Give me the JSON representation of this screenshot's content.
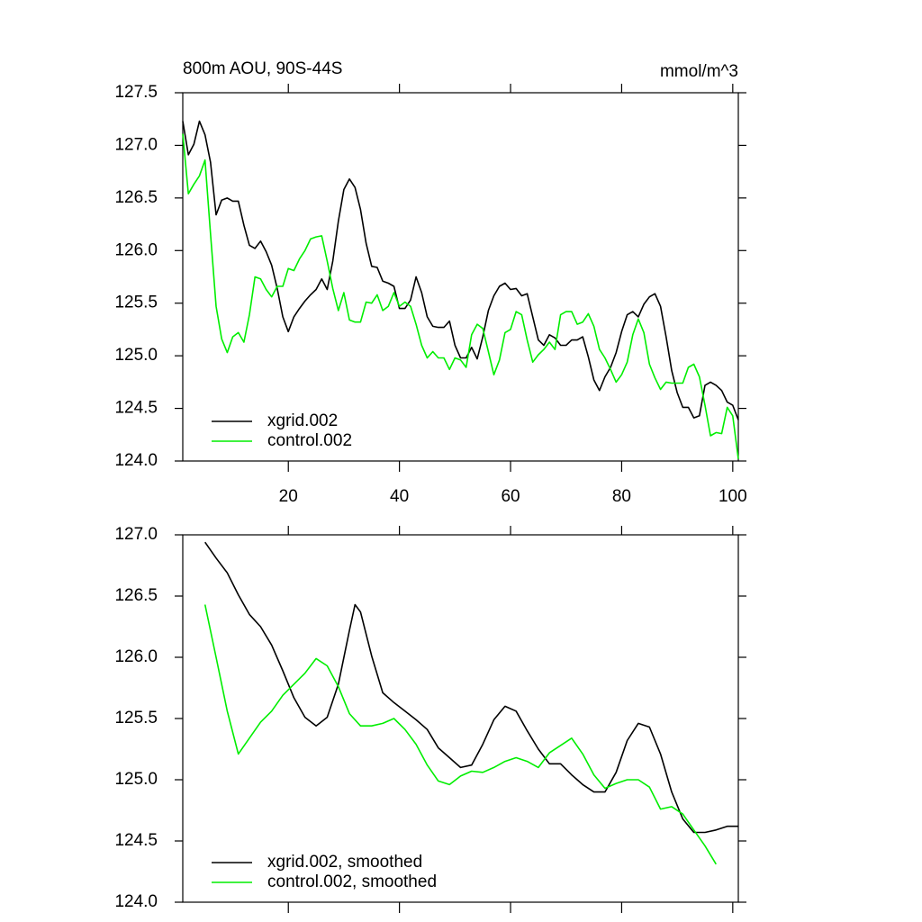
{
  "chart_data": [
    {
      "type": "line",
      "title": "800m AOU, 90S-44S",
      "units": "mmol/m^3",
      "x": [
        1,
        2,
        3,
        4,
        5,
        6,
        7,
        8,
        9,
        10,
        11,
        12,
        13,
        14,
        15,
        16,
        17,
        18,
        19,
        20,
        21,
        22,
        23,
        24,
        25,
        26,
        27,
        28,
        29,
        30,
        31,
        32,
        33,
        34,
        35,
        36,
        37,
        38,
        39,
        40,
        41,
        42,
        43,
        44,
        45,
        46,
        47,
        48,
        49,
        50,
        51,
        52,
        53,
        54,
        55,
        56,
        57,
        58,
        59,
        60,
        61,
        62,
        63,
        64,
        65,
        66,
        67,
        68,
        69,
        70,
        71,
        72,
        73,
        74,
        75,
        76,
        77,
        78,
        79,
        80,
        81,
        82,
        83,
        84,
        85,
        86,
        87,
        88,
        89,
        90,
        91,
        92,
        93,
        94,
        95,
        96,
        97,
        98,
        99,
        100,
        101
      ],
      "series": [
        {
          "name": "xgrid.002",
          "color": "#000000",
          "values": [
            127.23,
            126.91,
            127.01,
            127.23,
            127.1,
            126.84,
            126.34,
            126.48,
            126.5,
            126.47,
            126.47,
            126.24,
            126.05,
            126.02,
            126.09,
            125.99,
            125.86,
            125.64,
            125.37,
            125.23,
            125.37,
            125.45,
            125.52,
            125.58,
            125.63,
            125.73,
            125.63,
            125.9,
            126.28,
            126.58,
            126.68,
            126.6,
            126.39,
            126.07,
            125.85,
            125.84,
            125.71,
            125.69,
            125.66,
            125.45,
            125.45,
            125.53,
            125.75,
            125.6,
            125.37,
            125.28,
            125.27,
            125.27,
            125.33,
            125.1,
            124.98,
            124.98,
            125.08,
            124.97,
            125.18,
            125.43,
            125.57,
            125.66,
            125.69,
            125.63,
            125.64,
            125.57,
            125.59,
            125.37,
            125.15,
            125.1,
            125.2,
            125.17,
            125.1,
            125.1,
            125.15,
            125.15,
            125.18,
            124.99,
            124.77,
            124.67,
            124.8,
            124.89,
            125.03,
            125.23,
            125.39,
            125.42,
            125.37,
            125.49,
            125.56,
            125.59,
            125.47,
            125.18,
            124.86,
            124.65,
            124.51,
            124.51,
            124.41,
            124.43,
            124.72,
            124.75,
            124.72,
            124.67,
            124.56,
            124.53,
            124.39
          ]
        },
        {
          "name": "control.002",
          "color": "#00ee00",
          "values": [
            127.11,
            126.54,
            126.63,
            126.71,
            126.86,
            126.16,
            125.47,
            125.16,
            125.03,
            125.18,
            125.22,
            125.13,
            125.39,
            125.75,
            125.73,
            125.63,
            125.56,
            125.66,
            125.66,
            125.83,
            125.81,
            125.92,
            126.0,
            126.11,
            126.13,
            126.14,
            125.9,
            125.64,
            125.43,
            125.6,
            125.34,
            125.32,
            125.32,
            125.51,
            125.5,
            125.58,
            125.43,
            125.47,
            125.6,
            125.47,
            125.51,
            125.47,
            125.3,
            125.1,
            124.98,
            125.04,
            124.98,
            124.98,
            124.87,
            124.98,
            124.96,
            124.89,
            125.2,
            125.3,
            125.26,
            125.04,
            124.82,
            124.96,
            125.22,
            125.25,
            125.42,
            125.39,
            125.15,
            124.94,
            125.01,
            125.06,
            125.13,
            125.06,
            125.39,
            125.42,
            125.42,
            125.3,
            125.32,
            125.4,
            125.28,
            125.06,
            124.98,
            124.87,
            124.75,
            124.82,
            124.94,
            125.2,
            125.35,
            125.22,
            124.92,
            124.79,
            124.68,
            124.75,
            124.74,
            124.74,
            124.74,
            124.89,
            124.92,
            124.8,
            124.53,
            124.24,
            124.27,
            124.26,
            124.51,
            124.43,
            124.02
          ]
        }
      ],
      "xlim": [
        1,
        101
      ],
      "xticks": [
        20,
        40,
        60,
        80,
        100
      ],
      "xticklabels": true,
      "ylim": [
        124.0,
        127.5
      ],
      "yticks": [
        {
          "value": 124.0,
          "label": "124.0"
        },
        {
          "value": 124.5,
          "label": "124.5"
        },
        {
          "value": 125.0,
          "label": "125.0"
        },
        {
          "value": 125.5,
          "label": "125.5"
        },
        {
          "value": 126.0,
          "label": "126.0"
        },
        {
          "value": 126.5,
          "label": "126.5"
        },
        {
          "value": 127.0,
          "label": "127.0"
        },
        {
          "value": 127.5,
          "label": "127.5"
        }
      ],
      "legend": "lower left"
    },
    {
      "type": "line",
      "series": [
        {
          "name": "xgrid.002, smoothed",
          "color": "#000000",
          "x": [
            5,
            7,
            9,
            11,
            13,
            15,
            17,
            19,
            21,
            23,
            25,
            27,
            29,
            31,
            32,
            33,
            35,
            37,
            39,
            41,
            43,
            45,
            47,
            49,
            51,
            53,
            55,
            57,
            59,
            61,
            63,
            65,
            67,
            69,
            71,
            73,
            75,
            77,
            79,
            81,
            83,
            85,
            87,
            89,
            91,
            93,
            95,
            97,
            99,
            101
          ],
          "values": [
            126.94,
            126.81,
            126.69,
            126.51,
            126.35,
            126.25,
            126.1,
            125.89,
            125.67,
            125.51,
            125.44,
            125.51,
            125.78,
            126.22,
            126.43,
            126.37,
            126.01,
            125.71,
            125.63,
            125.56,
            125.49,
            125.41,
            125.26,
            125.18,
            125.1,
            125.12,
            125.29,
            125.49,
            125.6,
            125.56,
            125.4,
            125.25,
            125.13,
            125.13,
            125.04,
            124.96,
            124.9,
            124.9,
            125.06,
            125.32,
            125.46,
            125.43,
            125.21,
            124.9,
            124.68,
            124.57,
            124.57,
            124.59,
            124.62,
            124.62
          ]
        },
        {
          "name": "control.002, smoothed",
          "color": "#00ee00",
          "x": [
            5,
            7,
            9,
            11,
            13,
            15,
            17,
            19,
            21,
            23,
            25,
            27,
            29,
            31,
            33,
            35,
            37,
            39,
            41,
            43,
            45,
            47,
            49,
            51,
            53,
            55,
            57,
            59,
            61,
            63,
            65,
            67,
            69,
            71,
            73,
            75,
            77,
            79,
            81,
            83,
            85,
            87,
            89,
            91,
            93,
            95,
            97
          ],
          "values": [
            126.43,
            126.0,
            125.56,
            125.21,
            125.34,
            125.47,
            125.56,
            125.69,
            125.78,
            125.87,
            125.99,
            125.93,
            125.76,
            125.54,
            125.44,
            125.44,
            125.46,
            125.5,
            125.41,
            125.29,
            125.12,
            124.99,
            124.96,
            125.03,
            125.07,
            125.06,
            125.1,
            125.15,
            125.18,
            125.15,
            125.1,
            125.22,
            125.28,
            125.34,
            125.21,
            125.04,
            124.93,
            124.97,
            125.0,
            125.0,
            124.94,
            124.76,
            124.78,
            124.72,
            124.59,
            124.46,
            124.31
          ]
        }
      ],
      "xlim": [
        1,
        101
      ],
      "xticks": [
        20,
        40,
        60,
        80,
        100
      ],
      "xticklabels": false,
      "ylim": [
        124.0,
        127.0
      ],
      "yticks": [
        {
          "value": 124.0,
          "label": "124.0"
        },
        {
          "value": 124.5,
          "label": "124.5"
        },
        {
          "value": 125.0,
          "label": "125.0"
        },
        {
          "value": 125.5,
          "label": "125.5"
        },
        {
          "value": 126.0,
          "label": "126.0"
        },
        {
          "value": 126.5,
          "label": "126.5"
        },
        {
          "value": 127.0,
          "label": "127.0"
        }
      ],
      "legend": "lower left"
    }
  ]
}
